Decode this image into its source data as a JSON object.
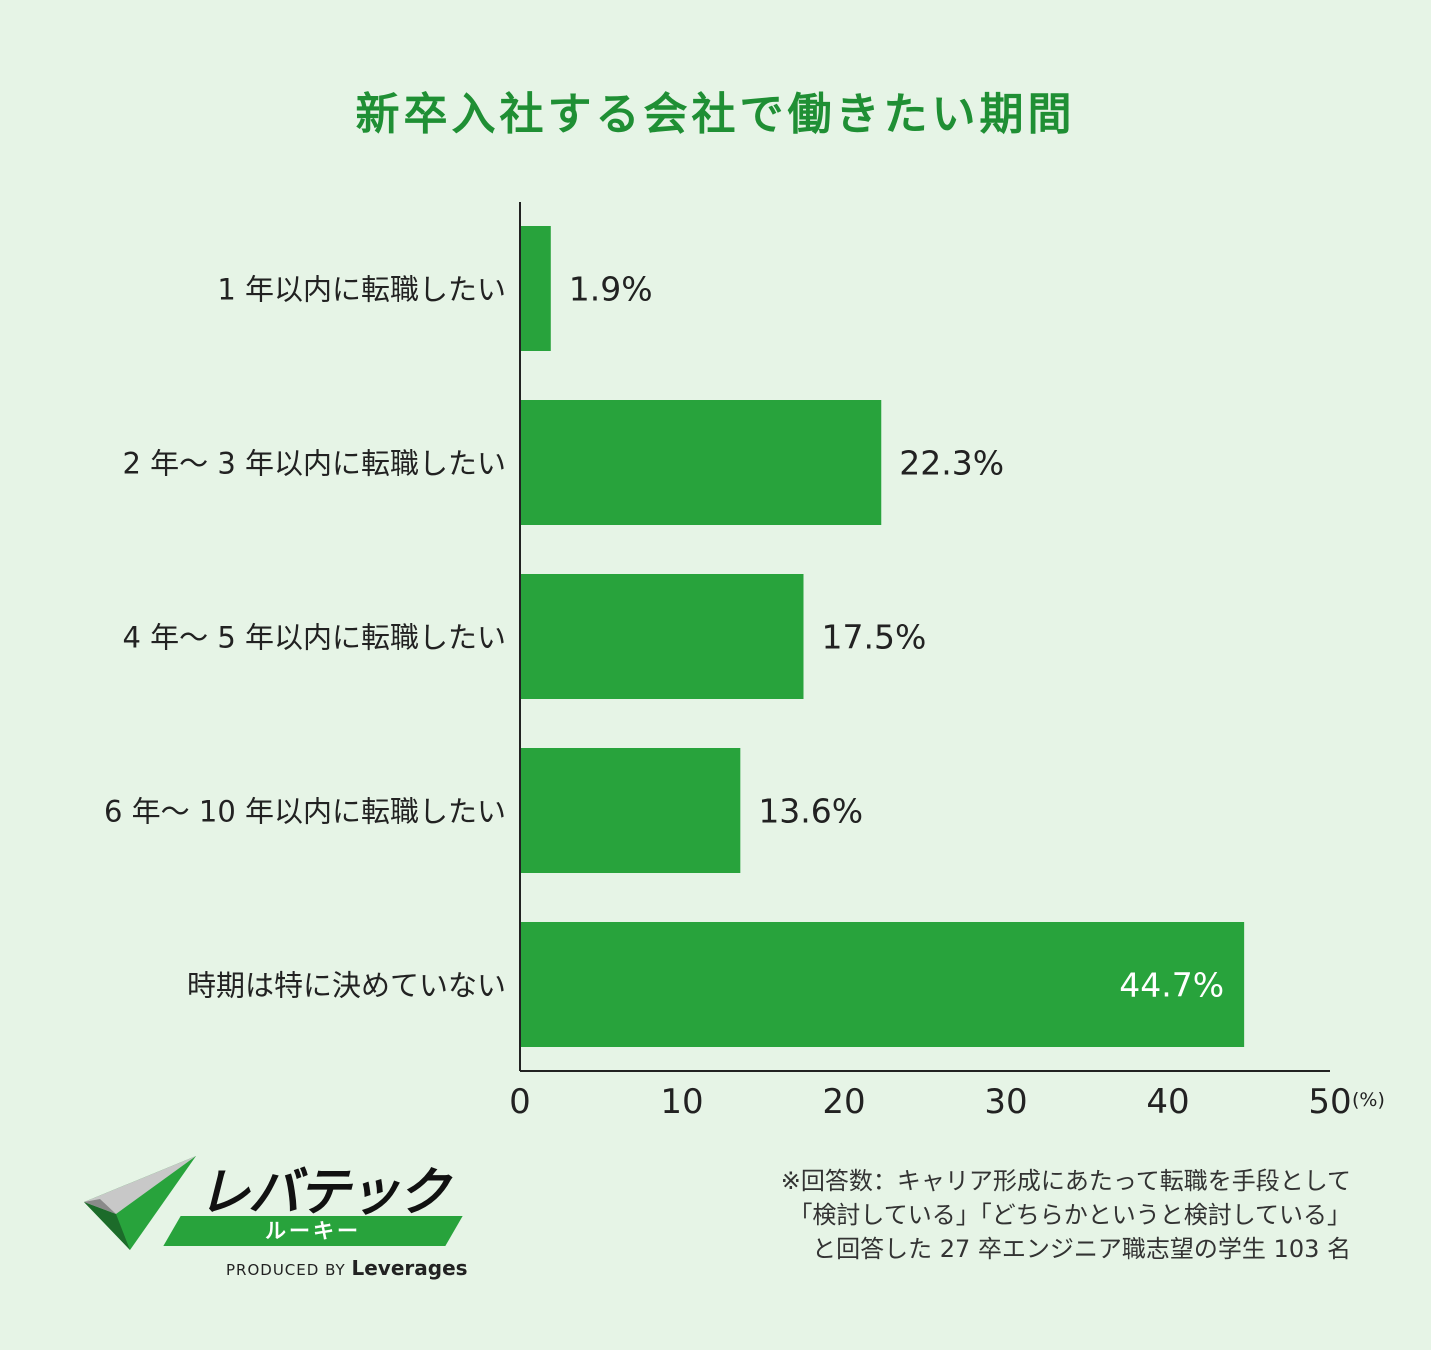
{
  "title": "新卒入社する会社で働きたい期間",
  "chart_data": {
    "type": "bar",
    "orientation": "horizontal",
    "categories": [
      "1 年以内に転職したい",
      "2 年〜 3 年以内に転職したい",
      "4 年〜 5 年以内に転職したい",
      "6 年〜 10 年以内に転職したい",
      "時期は特に決めていない"
    ],
    "values": [
      1.9,
      22.3,
      17.5,
      13.6,
      44.7
    ],
    "value_labels": [
      "1.9%",
      "22.3%",
      "17.5%",
      "13.6%",
      "44.7%"
    ],
    "xlim": [
      0,
      50
    ],
    "xticks": [
      "0",
      "10",
      "20",
      "30",
      "40",
      "50"
    ],
    "x_unit": "(%)",
    "grid": false,
    "bar_color": "#28a33c",
    "label_color": "#222222",
    "inside_label_color": "#ffffff"
  },
  "logo": {
    "name": "レバテック",
    "sub": "ルーキー",
    "produced_by": "PRODUCED BY",
    "brand": "Leverages"
  },
  "note": {
    "lines": [
      "※回答数：キャリア形成にあたって転職を手段として",
      "「検討している」「どちらかというと検討している」",
      "と回答した 27 卒エンジニア職志望の学生 103 名"
    ]
  }
}
